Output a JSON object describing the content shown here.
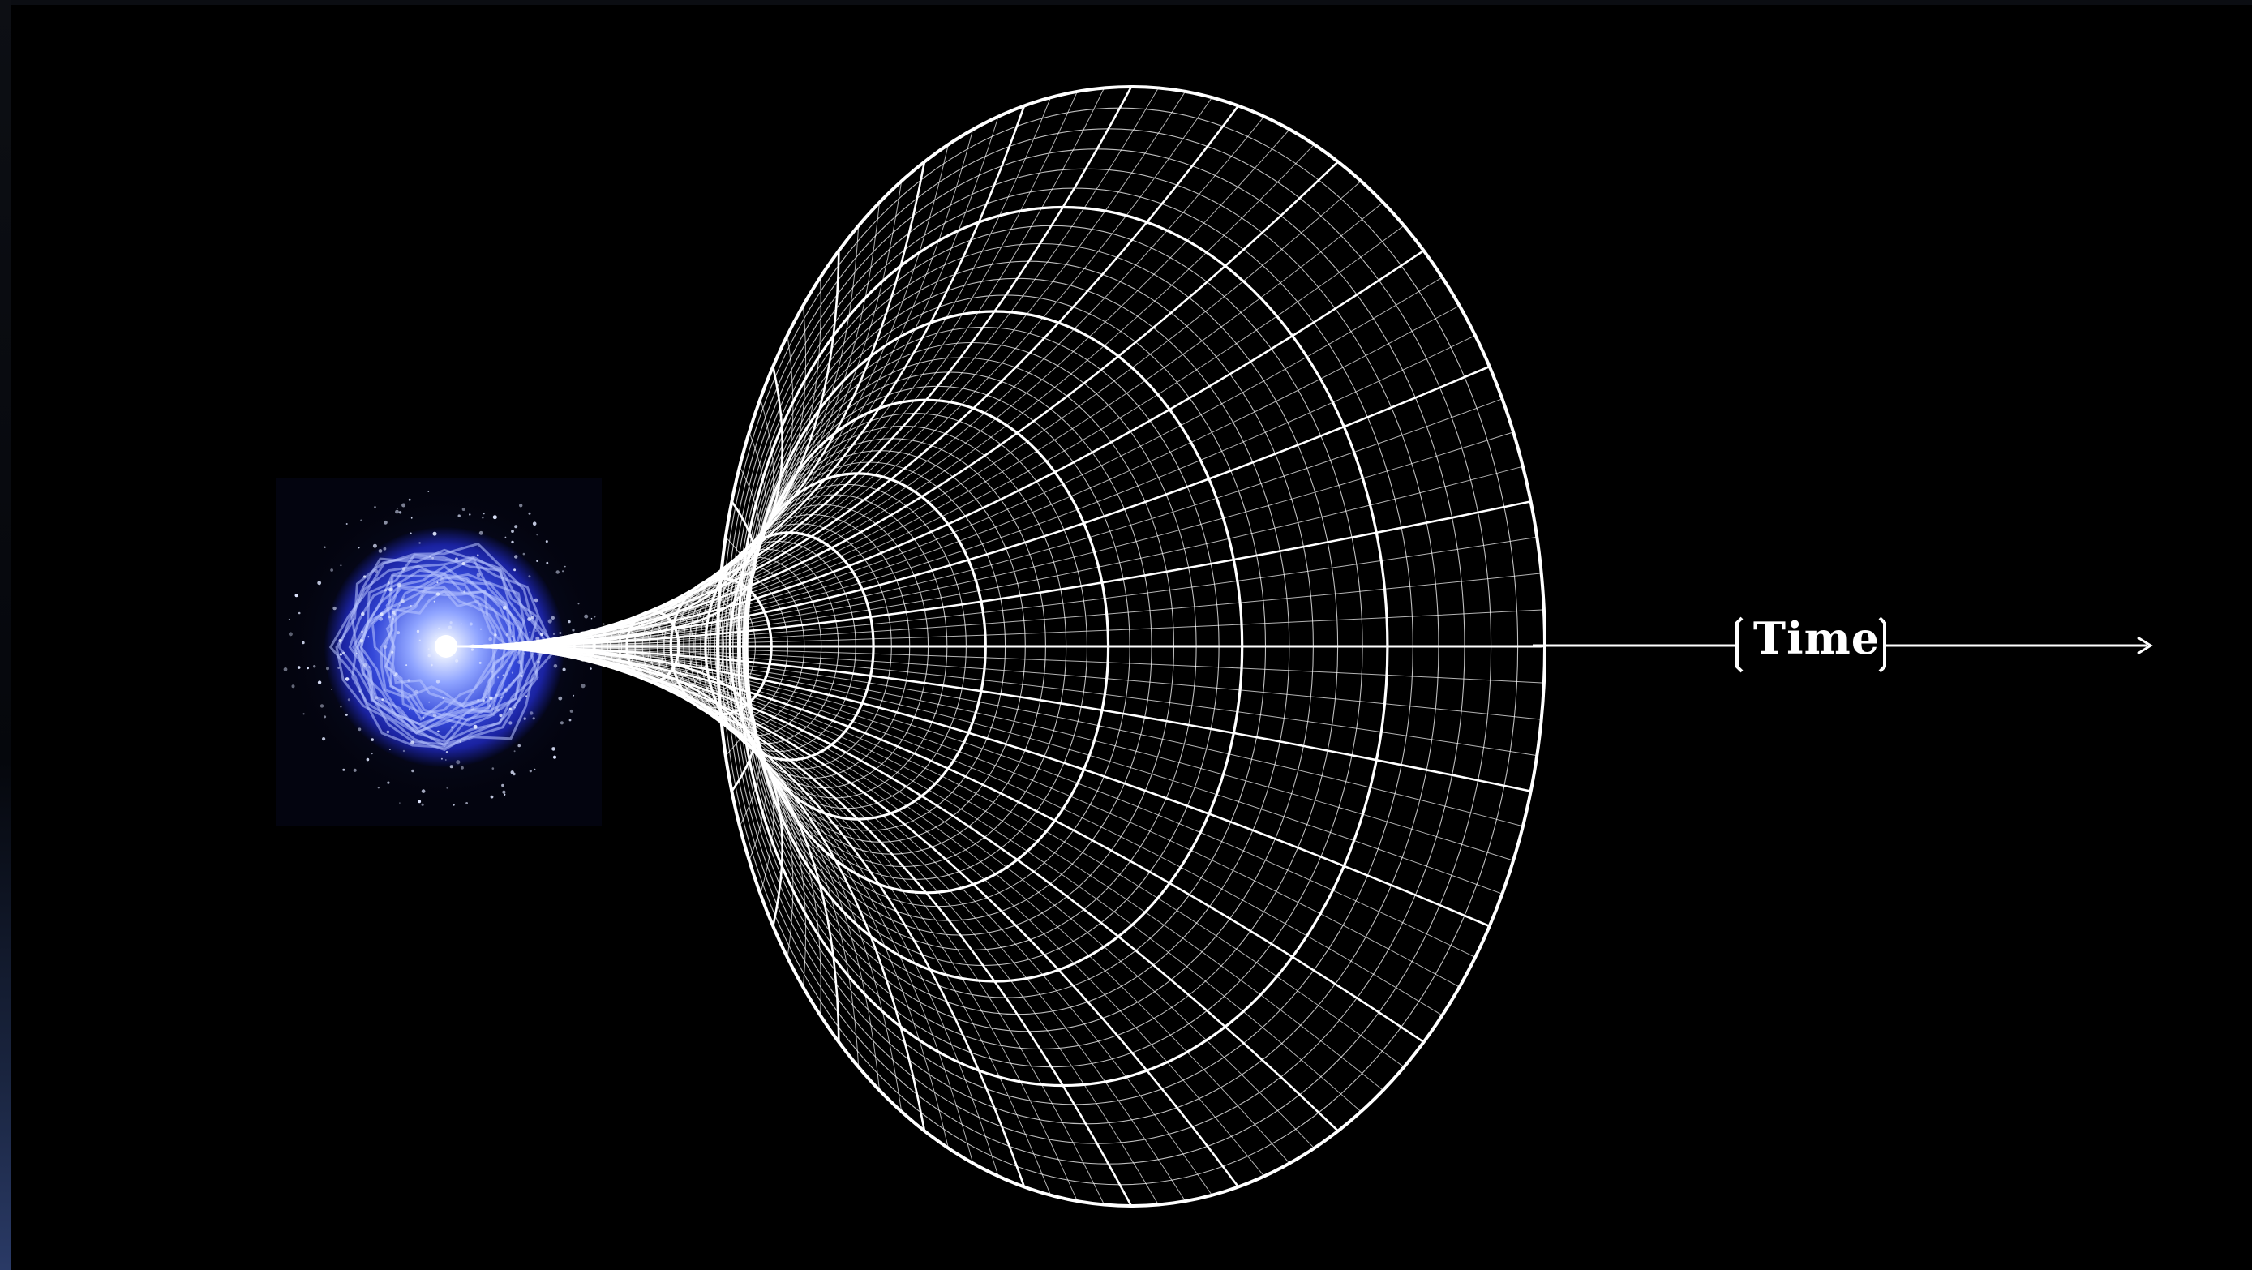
{
  "diagram": {
    "axis_label": "Time"
  },
  "colors": {
    "background": "#000000",
    "mesh": "#ffffff",
    "core_glow": "#3a4fe0",
    "core_bright": "#9fb4ff"
  },
  "icons": {
    "big_bang": "big-bang-icon",
    "expansion": "spacetime-funnel-mesh",
    "arrow": "arrow-right-icon"
  }
}
